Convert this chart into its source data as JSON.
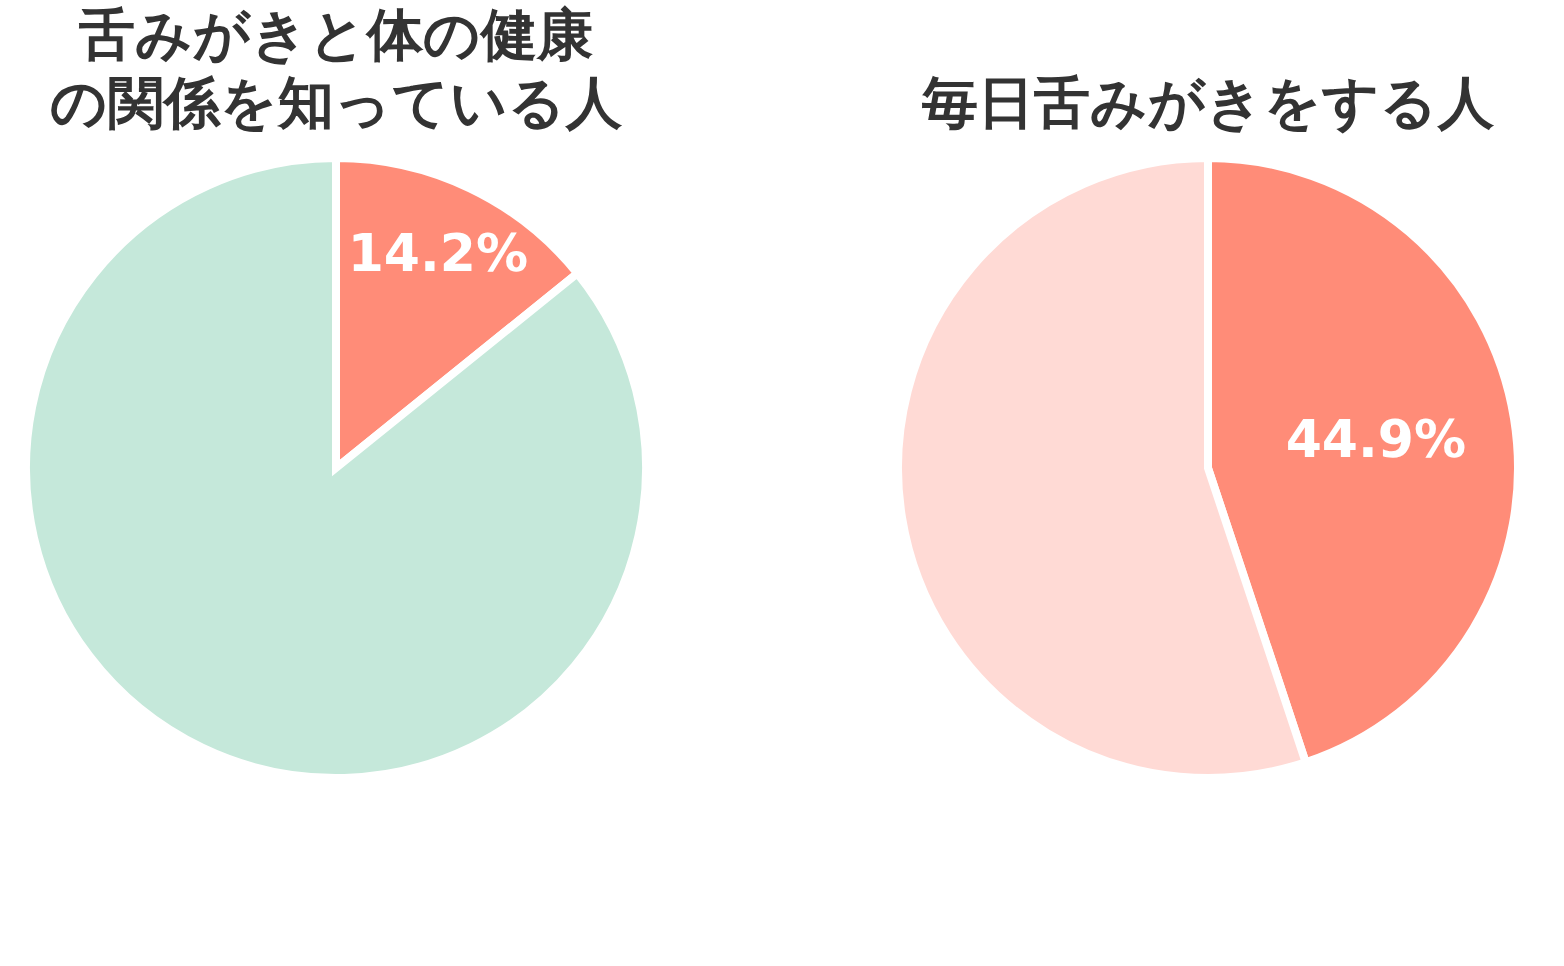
{
  "chart_data": [
    {
      "type": "pie",
      "title": "舌みがきと体の健康の関係を知っている人",
      "categories": [
        null,
        null
      ],
      "values": [
        14.2,
        85.8
      ],
      "colors": [
        "#ff8c78",
        "#c5e8da"
      ],
      "value_labels": [
        "14.2%",
        null
      ]
    },
    {
      "type": "pie",
      "title": "毎日舌みがきをする人",
      "categories": [
        null,
        null
      ],
      "values": [
        44.9,
        55.1
      ],
      "colors": [
        "#ff8c78",
        "#ffdad5"
      ],
      "value_labels": [
        "44.9%",
        null
      ]
    }
  ]
}
